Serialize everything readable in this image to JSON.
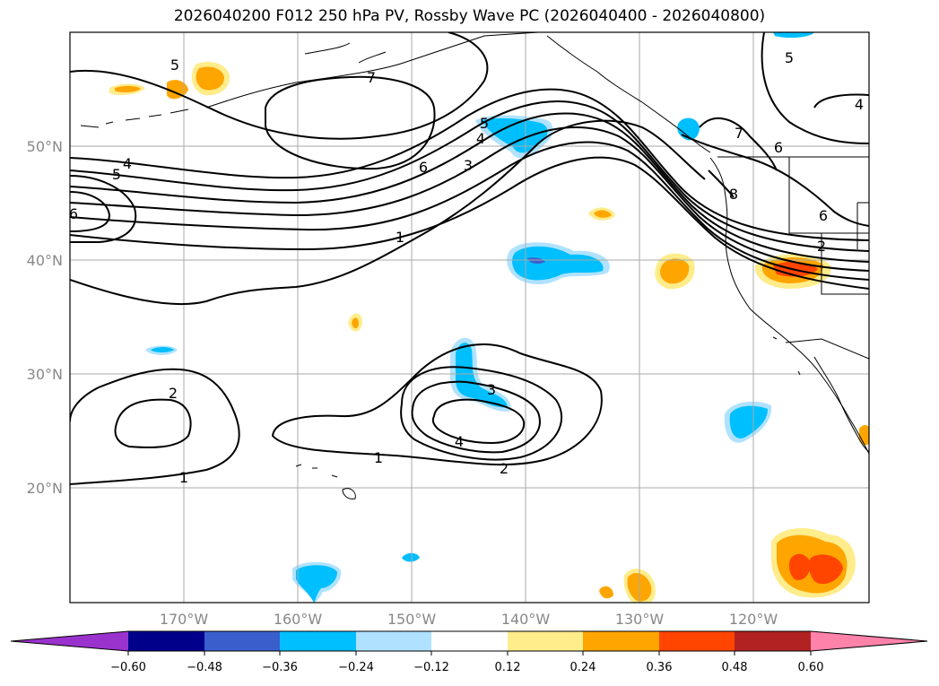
{
  "title": "2026040200 F012 250 hPa PV, Rossby Wave PC (2026040400 - 2026040800)",
  "lat_labels": [
    "50°N",
    "40°N",
    "30°N",
    "20°N"
  ],
  "lon_labels": [
    "170°W",
    "160°W",
    "150°W",
    "140°W",
    "130°W",
    "120°W"
  ],
  "contour_labels": [
    "5",
    "7",
    "4",
    "5",
    "6",
    "6",
    "3",
    "4",
    "5",
    "1",
    "7",
    "6",
    "8",
    "6",
    "2",
    "5",
    "4",
    "2",
    "1",
    "1",
    "3",
    "4",
    "2"
  ],
  "colorbar": {
    "ticks": [
      "−0.60",
      "−0.48",
      "−0.36",
      "−0.24",
      "−0.12",
      "0.12",
      "0.24",
      "0.36",
      "0.48",
      "0.60"
    ],
    "colors": [
      "#9a32cd",
      "#00008b",
      "#3a5fcd",
      "#00bfff",
      "#b0e2ff",
      "#ffffff",
      "#ffec8b",
      "#ffa500",
      "#ff4500",
      "#b22222",
      "#ff82ab"
    ]
  },
  "colors": {
    "neg_strong": "#00bfff",
    "neg_weak": "#b0e2ff",
    "neg_deep": "#3a5fcd",
    "pos_weak": "#ffec8b",
    "pos_mid": "#ffa500",
    "pos_strong": "#ff4500"
  }
}
